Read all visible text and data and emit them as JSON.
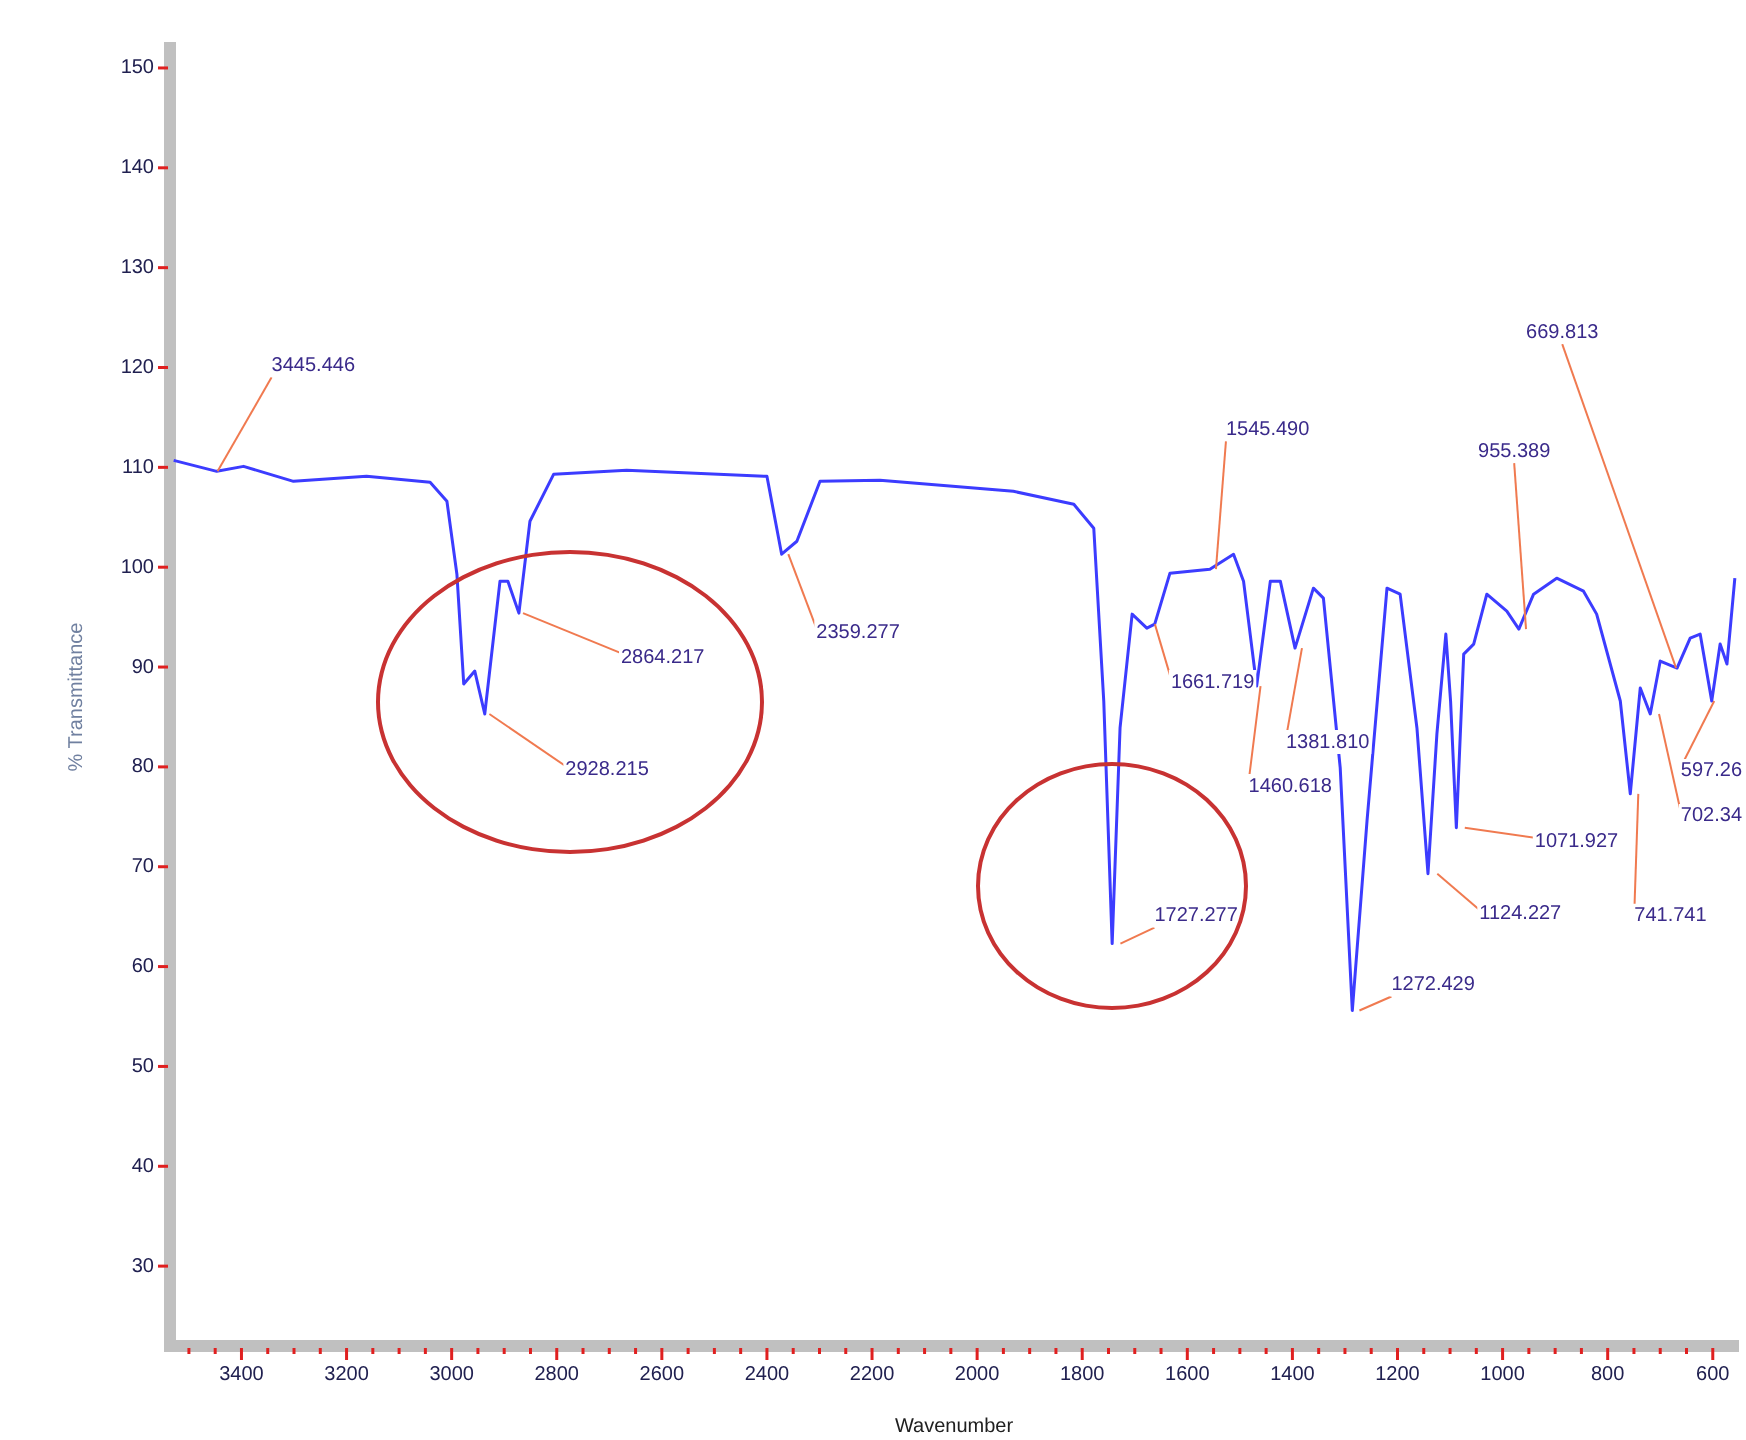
{
  "chart_data": {
    "type": "line",
    "xlabel": "Wavenumber",
    "ylabel": "% Transmittance",
    "xlim": [
      3536,
      552
    ],
    "ylim": [
      22,
      152
    ],
    "xticks": [
      {
        "value": 3500,
        "label": null
      },
      {
        "value": 3450,
        "label": null
      },
      3400,
      {
        "value": 3350,
        "label": null
      },
      {
        "value": 3300,
        "label": null
      },
      {
        "value": 3250,
        "label": null
      },
      3200,
      {
        "value": 3150,
        "label": null
      },
      {
        "value": 3100,
        "label": null
      },
      {
        "value": 3050,
        "label": null
      },
      3000,
      {
        "value": 2950,
        "label": null
      },
      {
        "value": 2900,
        "label": null
      },
      {
        "value": 2850,
        "label": null
      },
      2800,
      {
        "value": 2750,
        "label": null
      },
      {
        "value": 2700,
        "label": null
      },
      {
        "value": 2650,
        "label": null
      },
      2600,
      {
        "value": 2550,
        "label": null
      },
      {
        "value": 2500,
        "label": null
      },
      {
        "value": 2450,
        "label": null
      },
      2400,
      {
        "value": 2350,
        "label": null
      },
      {
        "value": 2300,
        "label": null
      },
      {
        "value": 2250,
        "label": null
      },
      2200,
      {
        "value": 2150,
        "label": null
      },
      {
        "value": 2100,
        "label": null
      },
      {
        "value": 2050,
        "label": null
      },
      2000,
      {
        "value": 1950,
        "label": null
      },
      {
        "value": 1900,
        "label": null
      },
      {
        "value": 1850,
        "label": null
      },
      1800,
      {
        "value": 1750,
        "label": null
      },
      {
        "value": 1700,
        "label": null
      },
      {
        "value": 1650,
        "label": null
      },
      1600,
      {
        "value": 1550,
        "label": null
      },
      {
        "value": 1500,
        "label": null
      },
      {
        "value": 1450,
        "label": null
      },
      1400,
      {
        "value": 1350,
        "label": null
      },
      {
        "value": 1300,
        "label": null
      },
      {
        "value": 1250,
        "label": null
      },
      1200,
      {
        "value": 1150,
        "label": null
      },
      {
        "value": 1100,
        "label": null
      },
      {
        "value": 1050,
        "label": null
      },
      1000,
      {
        "value": 950,
        "label": null
      },
      {
        "value": 900,
        "label": null
      },
      {
        "value": 850,
        "label": null
      },
      800,
      {
        "value": 750,
        "label": null
      },
      {
        "value": 700,
        "label": null
      },
      {
        "value": 650,
        "label": null
      },
      600
    ],
    "yticks": [
      30,
      40,
      50,
      60,
      70,
      80,
      90,
      100,
      110,
      120,
      130,
      140,
      150
    ],
    "grid": false,
    "legend": false,
    "marker": "none",
    "line_style": "solid",
    "series": [
      {
        "color": "#3c3cff",
        "x": [
          3529,
          3447,
          3396,
          3301,
          3162,
          3041,
          3009,
          2990,
          2977,
          2956,
          2937,
          2908,
          2893,
          2872,
          2851,
          2806,
          2667,
          2400,
          2372,
          2343,
          2299,
          2185,
          1931,
          1816,
          1778,
          1759,
          1743,
          1728,
          1705,
          1677,
          1662,
          1633,
          1557,
          1512,
          1493,
          1468,
          1442,
          1423,
          1395,
          1360,
          1341,
          1309,
          1286,
          1258,
          1220,
          1195,
          1163,
          1142,
          1125,
          1108,
          1099,
          1088,
          1074,
          1055,
          1030,
          992,
          969,
          941,
          897,
          846,
          821,
          776,
          757,
          738,
          719,
          700,
          668,
          643,
          624,
          602,
          586,
          573,
          558
        ],
        "values": [
          110.7,
          109.6,
          110.1,
          108.6,
          109.1,
          108.5,
          106.6,
          99.3,
          88.3,
          89.6,
          85.3,
          98.6,
          98.6,
          95.4,
          104.6,
          109.3,
          109.7,
          109.1,
          101.3,
          102.6,
          108.6,
          108.7,
          107.6,
          106.3,
          103.9,
          86.6,
          62.3,
          83.9,
          95.3,
          93.9,
          94.3,
          99.4,
          99.8,
          101.3,
          98.6,
          88.1,
          98.6,
          98.6,
          91.9,
          97.9,
          96.9,
          79.9,
          55.6,
          74.6,
          97.9,
          97.3,
          83.9,
          69.3,
          83.3,
          93.3,
          86.6,
          73.9,
          91.3,
          92.3,
          97.3,
          95.6,
          93.8,
          97.3,
          98.9,
          97.6,
          95.3,
          86.6,
          77.3,
          87.9,
          85.3,
          90.6,
          89.9,
          92.9,
          93.3,
          86.6,
          92.3,
          90.3,
          98.9
        ]
      }
    ],
    "annotations": [
      {
        "text": "3445.446",
        "x": 3445.446,
        "y": 109.6
      },
      {
        "text": "2928.215",
        "x": 2928.215,
        "y": 85.3
      },
      {
        "text": "2864.217",
        "x": 2864.217,
        "y": 95.4
      },
      {
        "text": "2359.277",
        "x": 2359.277,
        "y": 101.3
      },
      {
        "text": "1727.277",
        "x": 1727.277,
        "y": 62.3
      },
      {
        "text": "1661.719",
        "x": 1661.719,
        "y": 94.3
      },
      {
        "text": "1545.490",
        "x": 1545.49,
        "y": 99.8
      },
      {
        "text": "1460.618",
        "x": 1460.618,
        "y": 88.1
      },
      {
        "text": "1381.810",
        "x": 1381.81,
        "y": 91.9
      },
      {
        "text": "1272.429",
        "x": 1272.429,
        "y": 55.6
      },
      {
        "text": "1124.227",
        "x": 1124.227,
        "y": 69.3
      },
      {
        "text": "1071.927",
        "x": 1071.927,
        "y": 73.9
      },
      {
        "text": "955.389",
        "x": 955.389,
        "y": 93.8
      },
      {
        "text": "669.813",
        "x": 669.813,
        "y": 89.9
      },
      {
        "text": "741.741",
        "x": 741.741,
        "y": 77.3
      },
      {
        "text": "702.34",
        "x": 702.34,
        "y": 85.3
      },
      {
        "text": "597.26",
        "x": 597.26,
        "y": 86.6
      }
    ]
  }
}
